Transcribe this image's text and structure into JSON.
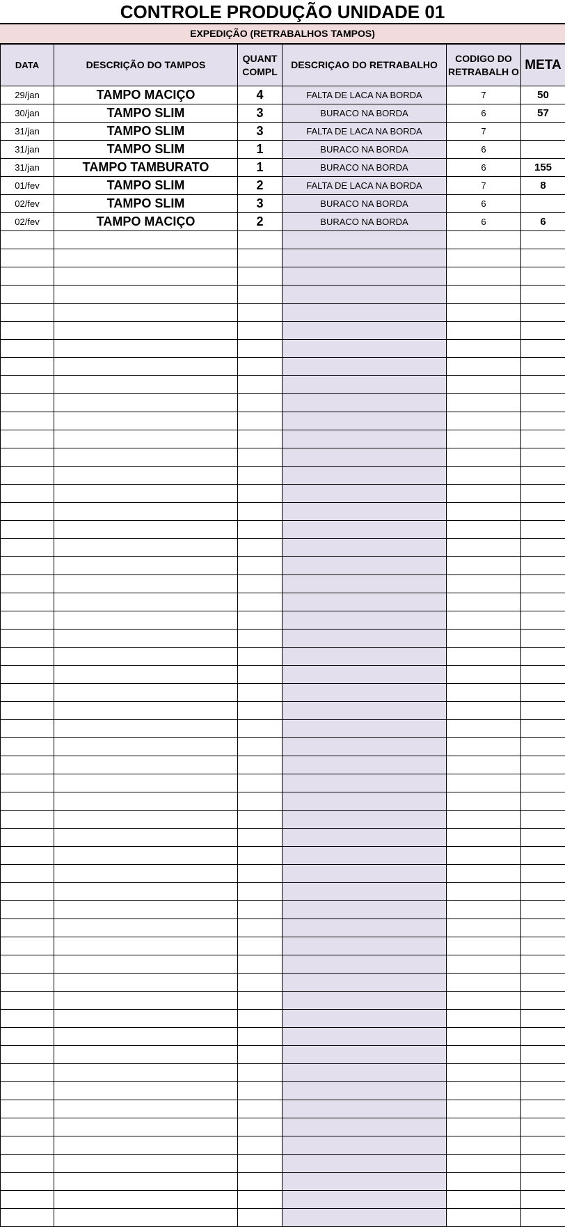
{
  "title": "CONTROLE PRODUÇÃO UNIDADE 01",
  "subtitle": "EXPEDIÇÃO (RETRABALHOS TAMPOS)",
  "columns": {
    "data": "DATA",
    "descricao_tampos": "DESCRIÇÃO DO TAMPOS",
    "quant": "QUANT COMPL",
    "descricao_retrabalho": "DESCRIÇAO DO RETRABALHO",
    "codigo": "CODIGO DO RETRABALH O",
    "meta": "META"
  },
  "rows": [
    {
      "data": "29/jan",
      "descricao": "TAMPO MACIÇO",
      "quant": "4",
      "retrabalho": "FALTA DE LACA NA BORDA",
      "codigo": "7",
      "meta": "50"
    },
    {
      "data": "30/jan",
      "descricao": "TAMPO SLIM",
      "quant": "3",
      "retrabalho": "BURACO NA BORDA",
      "codigo": "6",
      "meta": "57"
    },
    {
      "data": "31/jan",
      "descricao": "TAMPO SLIM",
      "quant": "3",
      "retrabalho": "FALTA DE LACA NA BORDA",
      "codigo": "7",
      "meta": ""
    },
    {
      "data": "31/jan",
      "descricao": "TAMPO SLIM",
      "quant": "1",
      "retrabalho": "BURACO NA BORDA",
      "codigo": "6",
      "meta": ""
    },
    {
      "data": "31/jan",
      "descricao": "TAMPO TAMBURATO",
      "quant": "1",
      "retrabalho": "BURACO NA BORDA",
      "codigo": "6",
      "meta": "155"
    },
    {
      "data": "01/fev",
      "descricao": "TAMPO SLIM",
      "quant": "2",
      "retrabalho": "FALTA DE LACA NA BORDA",
      "codigo": "7",
      "meta": "8"
    },
    {
      "data": "02/fev",
      "descricao": "TAMPO SLIM",
      "quant": "3",
      "retrabalho": "BURACO NA BORDA",
      "codigo": "6",
      "meta": ""
    },
    {
      "data": "02/fev",
      "descricao": "TAMPO MACIÇO",
      "quant": "2",
      "retrabalho": "BURACO NA BORDA",
      "codigo": "6",
      "meta": "6"
    },
    {
      "data": "",
      "descricao": "",
      "quant": "",
      "retrabalho": "",
      "codigo": "",
      "meta": ""
    },
    {
      "data": "",
      "descricao": "",
      "quant": "",
      "retrabalho": "",
      "codigo": "",
      "meta": ""
    },
    {
      "data": "",
      "descricao": "",
      "quant": "",
      "retrabalho": "",
      "codigo": "",
      "meta": ""
    },
    {
      "data": "",
      "descricao": "",
      "quant": "",
      "retrabalho": "",
      "codigo": "",
      "meta": ""
    },
    {
      "data": "",
      "descricao": "",
      "quant": "",
      "retrabalho": "",
      "codigo": "",
      "meta": ""
    },
    {
      "data": "",
      "descricao": "",
      "quant": "",
      "retrabalho": "",
      "codigo": "",
      "meta": ""
    },
    {
      "data": "",
      "descricao": "",
      "quant": "",
      "retrabalho": "",
      "codigo": "",
      "meta": ""
    },
    {
      "data": "",
      "descricao": "",
      "quant": "",
      "retrabalho": "",
      "codigo": "",
      "meta": ""
    },
    {
      "data": "",
      "descricao": "",
      "quant": "",
      "retrabalho": "",
      "codigo": "",
      "meta": ""
    },
    {
      "data": "",
      "descricao": "",
      "quant": "",
      "retrabalho": "",
      "codigo": "",
      "meta": ""
    },
    {
      "data": "",
      "descricao": "",
      "quant": "",
      "retrabalho": "",
      "codigo": "",
      "meta": ""
    },
    {
      "data": "",
      "descricao": "",
      "quant": "",
      "retrabalho": "",
      "codigo": "",
      "meta": ""
    },
    {
      "data": "",
      "descricao": "",
      "quant": "",
      "retrabalho": "",
      "codigo": "",
      "meta": ""
    },
    {
      "data": "",
      "descricao": "",
      "quant": "",
      "retrabalho": "",
      "codigo": "",
      "meta": ""
    },
    {
      "data": "",
      "descricao": "",
      "quant": "",
      "retrabalho": "",
      "codigo": "",
      "meta": ""
    },
    {
      "data": "",
      "descricao": "",
      "quant": "",
      "retrabalho": "",
      "codigo": "",
      "meta": ""
    },
    {
      "data": "",
      "descricao": "",
      "quant": "",
      "retrabalho": "",
      "codigo": "",
      "meta": ""
    },
    {
      "data": "",
      "descricao": "",
      "quant": "",
      "retrabalho": "",
      "codigo": "",
      "meta": ""
    },
    {
      "data": "",
      "descricao": "",
      "quant": "",
      "retrabalho": "",
      "codigo": "",
      "meta": ""
    },
    {
      "data": "",
      "descricao": "",
      "quant": "",
      "retrabalho": "",
      "codigo": "",
      "meta": ""
    },
    {
      "data": "",
      "descricao": "",
      "quant": "",
      "retrabalho": "",
      "codigo": "",
      "meta": ""
    },
    {
      "data": "",
      "descricao": "",
      "quant": "",
      "retrabalho": "",
      "codigo": "",
      "meta": ""
    },
    {
      "data": "",
      "descricao": "",
      "quant": "",
      "retrabalho": "",
      "codigo": "",
      "meta": ""
    },
    {
      "data": "",
      "descricao": "",
      "quant": "",
      "retrabalho": "",
      "codigo": "",
      "meta": ""
    },
    {
      "data": "",
      "descricao": "",
      "quant": "",
      "retrabalho": "",
      "codigo": "",
      "meta": ""
    },
    {
      "data": "",
      "descricao": "",
      "quant": "",
      "retrabalho": "",
      "codigo": "",
      "meta": ""
    },
    {
      "data": "",
      "descricao": "",
      "quant": "",
      "retrabalho": "",
      "codigo": "",
      "meta": ""
    },
    {
      "data": "",
      "descricao": "",
      "quant": "",
      "retrabalho": "",
      "codigo": "",
      "meta": ""
    },
    {
      "data": "",
      "descricao": "",
      "quant": "",
      "retrabalho": "",
      "codigo": "",
      "meta": ""
    },
    {
      "data": "",
      "descricao": "",
      "quant": "",
      "retrabalho": "",
      "codigo": "",
      "meta": ""
    },
    {
      "data": "",
      "descricao": "",
      "quant": "",
      "retrabalho": "",
      "codigo": "",
      "meta": ""
    },
    {
      "data": "",
      "descricao": "",
      "quant": "",
      "retrabalho": "",
      "codigo": "",
      "meta": ""
    },
    {
      "data": "",
      "descricao": "",
      "quant": "",
      "retrabalho": "",
      "codigo": "",
      "meta": ""
    },
    {
      "data": "",
      "descricao": "",
      "quant": "",
      "retrabalho": "",
      "codigo": "",
      "meta": ""
    },
    {
      "data": "",
      "descricao": "",
      "quant": "",
      "retrabalho": "",
      "codigo": "",
      "meta": ""
    },
    {
      "data": "",
      "descricao": "",
      "quant": "",
      "retrabalho": "",
      "codigo": "",
      "meta": ""
    },
    {
      "data": "",
      "descricao": "",
      "quant": "",
      "retrabalho": "",
      "codigo": "",
      "meta": ""
    },
    {
      "data": "",
      "descricao": "",
      "quant": "",
      "retrabalho": "",
      "codigo": "",
      "meta": ""
    },
    {
      "data": "",
      "descricao": "",
      "quant": "",
      "retrabalho": "",
      "codigo": "",
      "meta": ""
    },
    {
      "data": "",
      "descricao": "",
      "quant": "",
      "retrabalho": "",
      "codigo": "",
      "meta": ""
    },
    {
      "data": "",
      "descricao": "",
      "quant": "",
      "retrabalho": "",
      "codigo": "",
      "meta": ""
    },
    {
      "data": "",
      "descricao": "",
      "quant": "",
      "retrabalho": "",
      "codigo": "",
      "meta": ""
    },
    {
      "data": "",
      "descricao": "",
      "quant": "",
      "retrabalho": "",
      "codigo": "",
      "meta": ""
    },
    {
      "data": "",
      "descricao": "",
      "quant": "",
      "retrabalho": "",
      "codigo": "",
      "meta": ""
    },
    {
      "data": "",
      "descricao": "",
      "quant": "",
      "retrabalho": "",
      "codigo": "",
      "meta": ""
    },
    {
      "data": "",
      "descricao": "",
      "quant": "",
      "retrabalho": "",
      "codigo": "",
      "meta": ""
    },
    {
      "data": "",
      "descricao": "",
      "quant": "",
      "retrabalho": "",
      "codigo": "",
      "meta": ""
    },
    {
      "data": "",
      "descricao": "",
      "quant": "",
      "retrabalho": "",
      "codigo": "",
      "meta": ""
    },
    {
      "data": "",
      "descricao": "",
      "quant": "",
      "retrabalho": "",
      "codigo": "",
      "meta": ""
    },
    {
      "data": "",
      "descricao": "",
      "quant": "",
      "retrabalho": "",
      "codigo": "",
      "meta": ""
    },
    {
      "data": "",
      "descricao": "",
      "quant": "",
      "retrabalho": "",
      "codigo": "",
      "meta": ""
    },
    {
      "data": "",
      "descricao": "",
      "quant": "",
      "retrabalho": "",
      "codigo": "",
      "meta": ""
    },
    {
      "data": "",
      "descricao": "",
      "quant": "",
      "retrabalho": "",
      "codigo": "",
      "meta": ""
    },
    {
      "data": "",
      "descricao": "",
      "quant": "",
      "retrabalho": "",
      "codigo": "",
      "meta": ""
    },
    {
      "data": "",
      "descricao": "",
      "quant": "",
      "retrabalho": "",
      "codigo": "",
      "meta": ""
    }
  ]
}
